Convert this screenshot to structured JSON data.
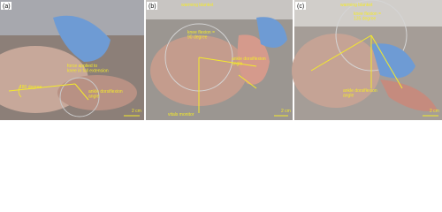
{
  "panels": [
    {
      "label": "(a)",
      "annotations": [
        {
          "lines": [
            "force applied to",
            "knee in full extension"
          ]
        },
        {
          "lines": [
            "180 degree"
          ]
        },
        {
          "lines": [
            "ankle dorsiflexion",
            "angle"
          ]
        }
      ],
      "scale": "2 cm"
    },
    {
      "label": "(b)",
      "annotations": [
        {
          "lines": [
            "warming blanket"
          ]
        },
        {
          "lines": [
            "knee flexion =",
            "90 degree"
          ]
        },
        {
          "lines": [
            "ankle dorsiflexion",
            "angle"
          ]
        },
        {
          "lines": [
            "vitals monitor"
          ]
        }
      ],
      "scale": "2 cm"
    },
    {
      "label": "(c)",
      "annotations": [
        {
          "lines": [
            "warming blanket"
          ]
        },
        {
          "lines": [
            "knee flexion =",
            "135 degree"
          ]
        },
        {
          "lines": [
            "ankle dorsiflexion",
            "angle"
          ]
        }
      ],
      "scale": "2 cm"
    }
  ]
}
